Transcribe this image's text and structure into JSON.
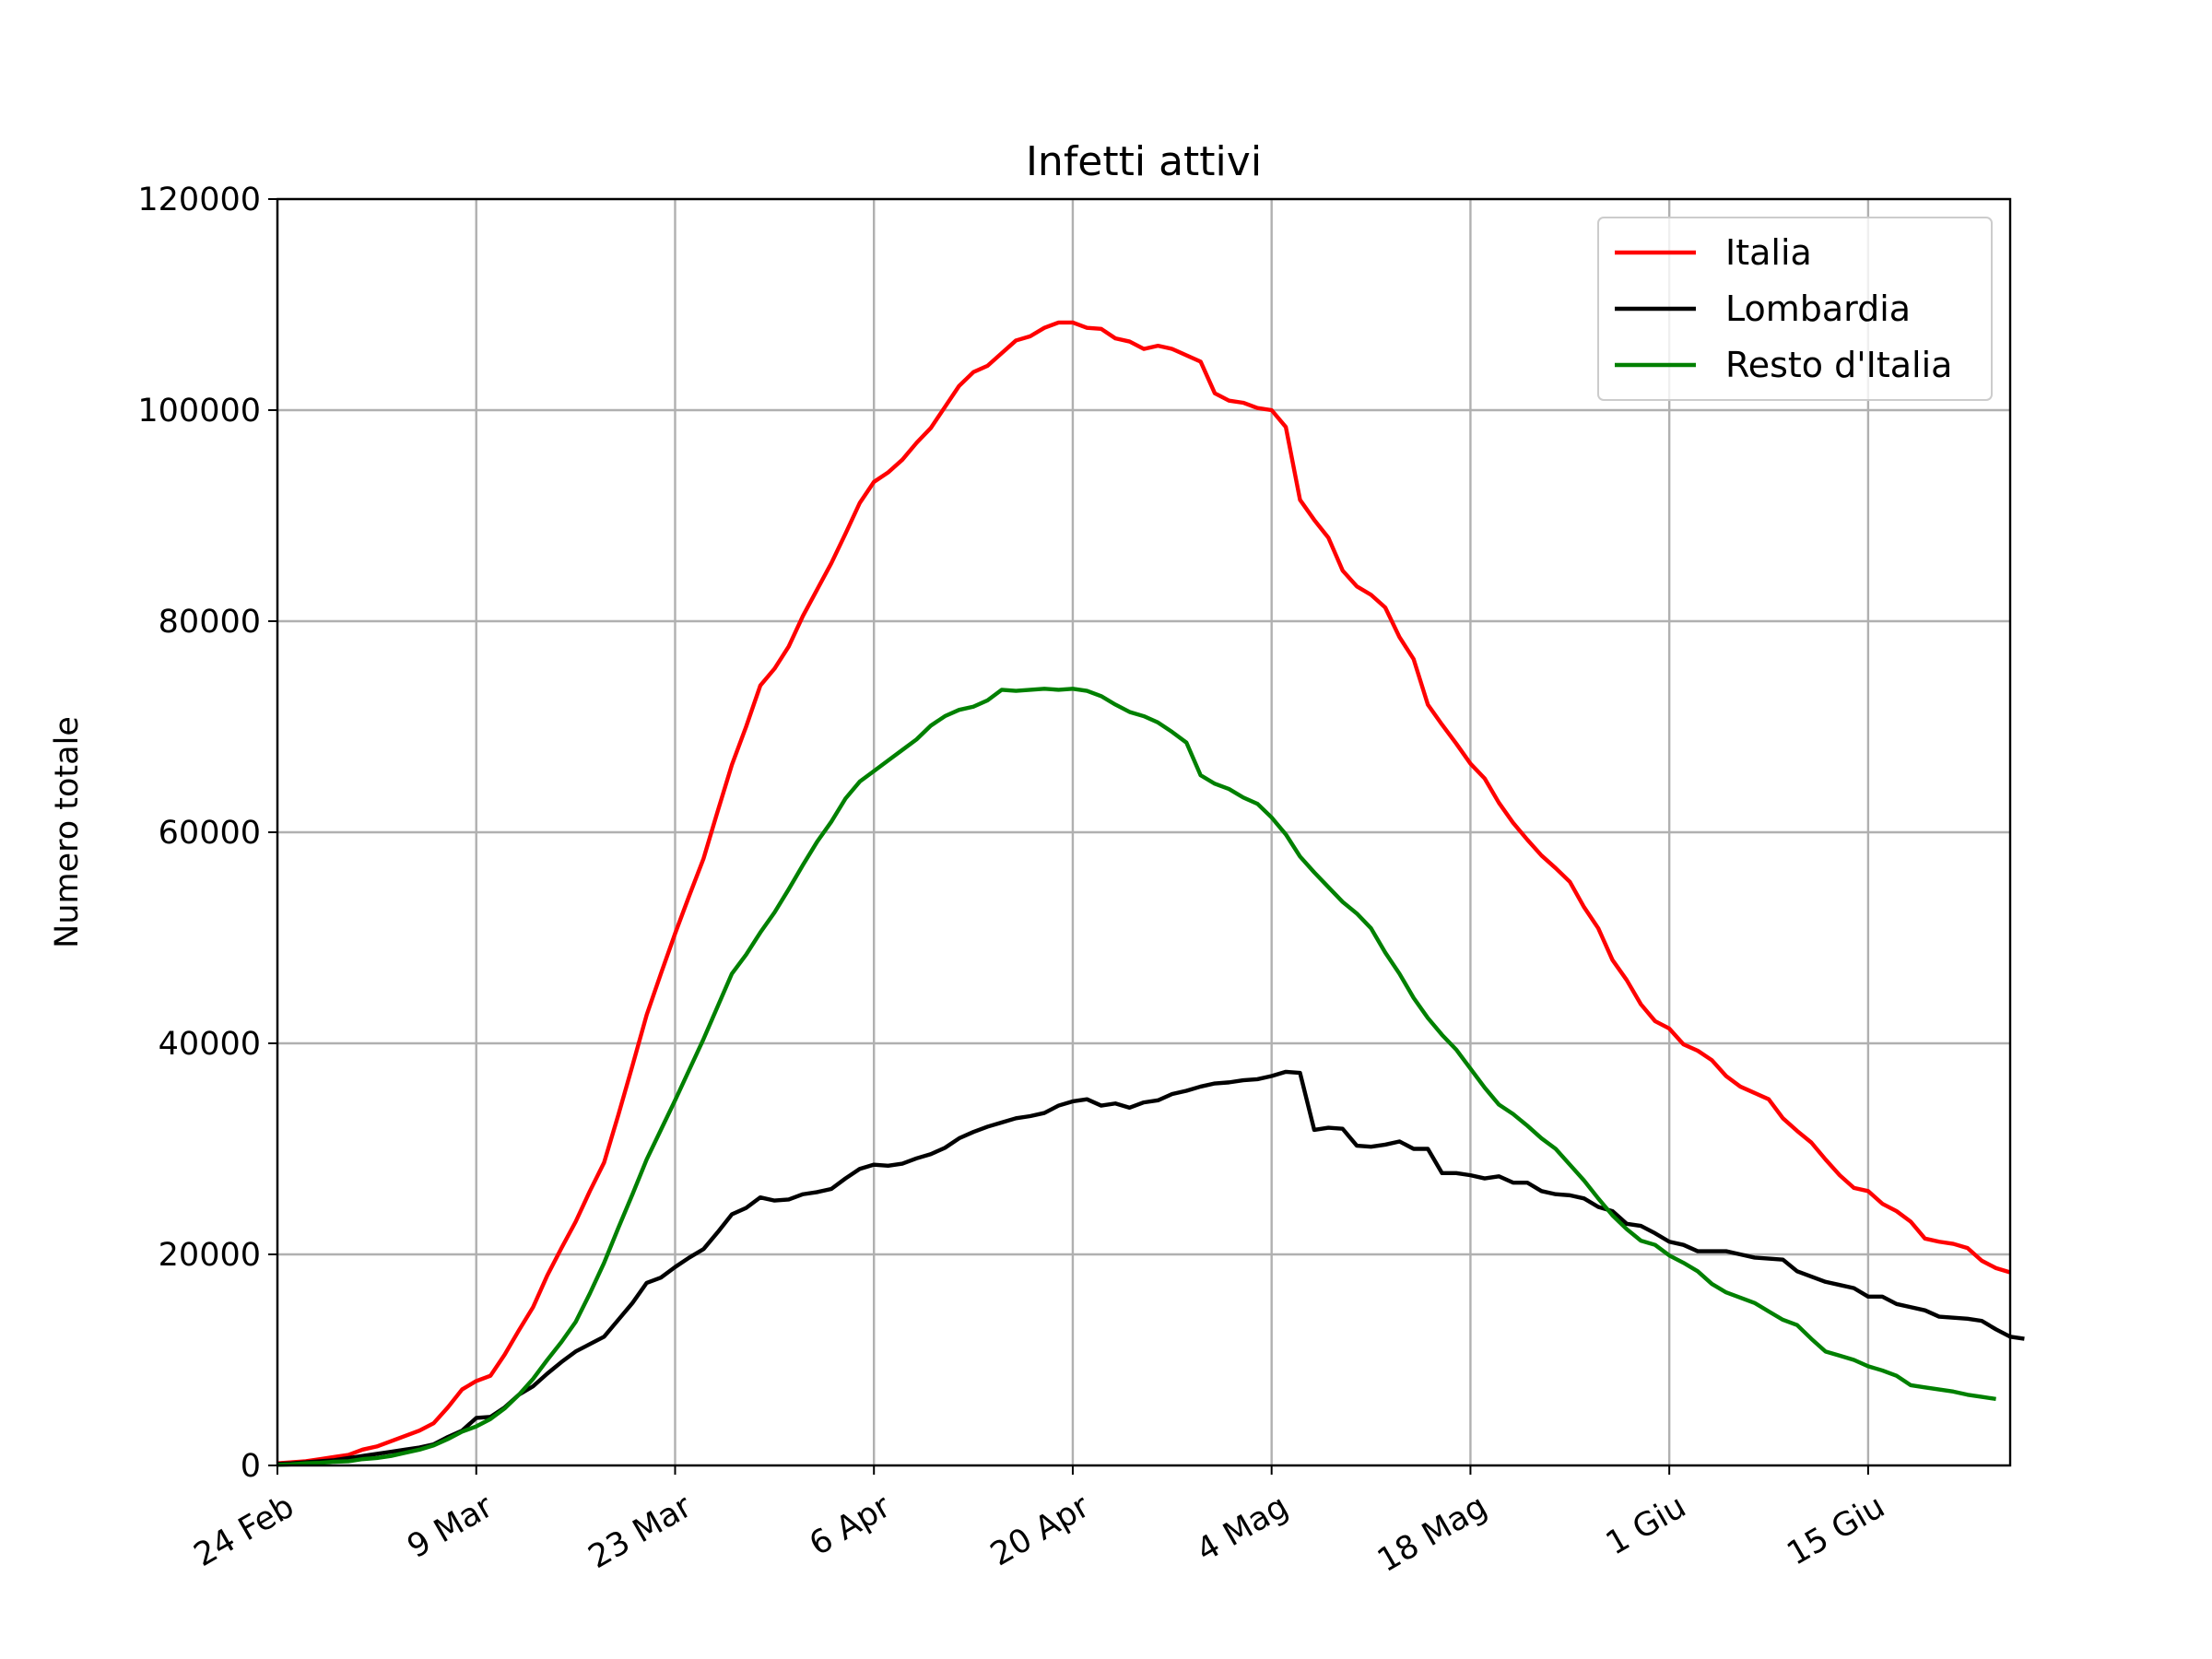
{
  "chart_data": {
    "type": "line",
    "title": "Infetti attivi",
    "xlabel": "",
    "ylabel": "Numero totale",
    "x_start": "2020-02-24",
    "x_tick_labels": [
      "24 Feb",
      "9 Mar",
      "23 Mar",
      "6 Apr",
      "20 Apr",
      "4 Mag",
      "18 Mag",
      "1 Giu",
      "15 Giu"
    ],
    "x_tick_dates": [
      "2020-02-24",
      "2020-03-09",
      "2020-03-23",
      "2020-04-06",
      "2020-04-20",
      "2020-05-04",
      "2020-05-18",
      "2020-06-01",
      "2020-06-15"
    ],
    "xlim": [
      "2020-02-24",
      "2020-06-25"
    ],
    "y_ticks": [
      "0",
      "20000",
      "40000",
      "60000",
      "80000",
      "100000",
      "120000"
    ],
    "ylim": [
      0,
      120000
    ],
    "grid": true,
    "legend_position": "top-right",
    "series": [
      {
        "name": "Italia",
        "color": "#ff0000",
        "values": [
          200,
          300,
          400,
          600,
          800,
          1000,
          1500,
          1800,
          2300,
          2800,
          3300,
          4000,
          5500,
          7200,
          8000,
          8500,
          10500,
          12800,
          15000,
          18000,
          20600,
          23100,
          26000,
          28700,
          33200,
          37900,
          42700,
          46600,
          50400,
          54000,
          57500,
          62000,
          66400,
          70000,
          73900,
          75500,
          77600,
          80500,
          83000,
          85500,
          88300,
          91200,
          93200,
          94100,
          95300,
          96900,
          98300,
          100300,
          102300,
          103600,
          104200,
          105400,
          106600,
          107000,
          107800,
          108300,
          108300,
          107800,
          107700,
          106800,
          106500,
          105800,
          106100,
          105800,
          105200,
          104600,
          101600,
          100900,
          100700,
          100200,
          100000,
          98400,
          91500,
          89600,
          87900,
          84800,
          83300,
          82500,
          81300,
          78500,
          76400,
          72100,
          70200,
          68400,
          66500,
          65100,
          62800,
          60900,
          59300,
          57800,
          56600,
          55300,
          52900,
          50900,
          47900,
          46000,
          43700,
          42100,
          41400,
          39900,
          39300,
          38400,
          36900,
          35900,
          35300,
          34700,
          32900,
          31700,
          30600,
          28997,
          27500,
          26300,
          26000,
          24800,
          24100,
          23100,
          21500,
          21200,
          21000,
          20600,
          19400,
          18700,
          18300
        ]
      },
      {
        "name": "Lombardia",
        "color": "#000000",
        "values": [
          150,
          200,
          300,
          400,
          500,
          700,
          900,
          1100,
          1300,
          1500,
          1700,
          2000,
          2700,
          3300,
          4500,
          4600,
          5500,
          6700,
          7500,
          8700,
          9800,
          10800,
          11500,
          12200,
          13800,
          15400,
          17300,
          17800,
          18800,
          19700,
          20500,
          22100,
          23800,
          24400,
          25400,
          25100,
          25200,
          25700,
          25900,
          26200,
          27200,
          28100,
          28500,
          28400,
          28600,
          29100,
          29500,
          30100,
          31000,
          31600,
          32100,
          32500,
          32900,
          33100,
          33400,
          34100,
          34500,
          34700,
          34100,
          34300,
          33900,
          34400,
          34600,
          35200,
          35500,
          35900,
          36200,
          36300,
          36500,
          36600,
          36900,
          37300,
          37200,
          31800,
          32000,
          31900,
          30300,
          30200,
          30400,
          30700,
          30000,
          30000,
          27700,
          27700,
          27500,
          27200,
          27400,
          26800,
          26800,
          26000,
          25700,
          25600,
          25300,
          24500,
          24100,
          22900,
          22700,
          22000,
          21200,
          20900,
          20300,
          20300,
          20300,
          20000,
          19700,
          19600,
          19500,
          18400,
          17900,
          17400,
          17100,
          16800,
          16000,
          16000,
          15300,
          15000,
          14700,
          14100,
          14000,
          13900,
          13700,
          12900,
          12200,
          12000
        ]
      },
      {
        "name": "Resto d'Italia",
        "color": "#008000",
        "values": [
          50,
          100,
          200,
          250,
          350,
          400,
          600,
          700,
          900,
          1200,
          1500,
          1900,
          2500,
          3200,
          3700,
          4400,
          5400,
          6700,
          8200,
          10000,
          11700,
          13600,
          16300,
          19200,
          22500,
          25700,
          29000,
          31800,
          34600,
          37500,
          40400,
          43500,
          46600,
          48400,
          50500,
          52400,
          54600,
          56900,
          59100,
          61000,
          63200,
          64800,
          65800,
          66800,
          67800,
          68800,
          70100,
          71000,
          71600,
          71900,
          72500,
          73500,
          73400,
          73500,
          73600,
          73500,
          73600,
          73400,
          72900,
          72100,
          71400,
          71000,
          70400,
          69500,
          68500,
          65400,
          64600,
          64100,
          63300,
          62700,
          61400,
          59800,
          57700,
          56200,
          54800,
          53400,
          52300,
          50900,
          48600,
          46600,
          44300,
          42400,
          40800,
          39400,
          37600,
          35800,
          34200,
          33300,
          32200,
          31000,
          30000,
          28500,
          27000,
          25300,
          23700,
          22400,
          21300,
          20900,
          19900,
          19200,
          18400,
          17200,
          16400,
          15900,
          15400,
          14600,
          13800,
          13300,
          12000,
          10800,
          10400,
          10000,
          9400,
          9000,
          8500,
          7600,
          7400,
          7200,
          7000,
          6700,
          6500,
          6300
        ]
      }
    ]
  }
}
